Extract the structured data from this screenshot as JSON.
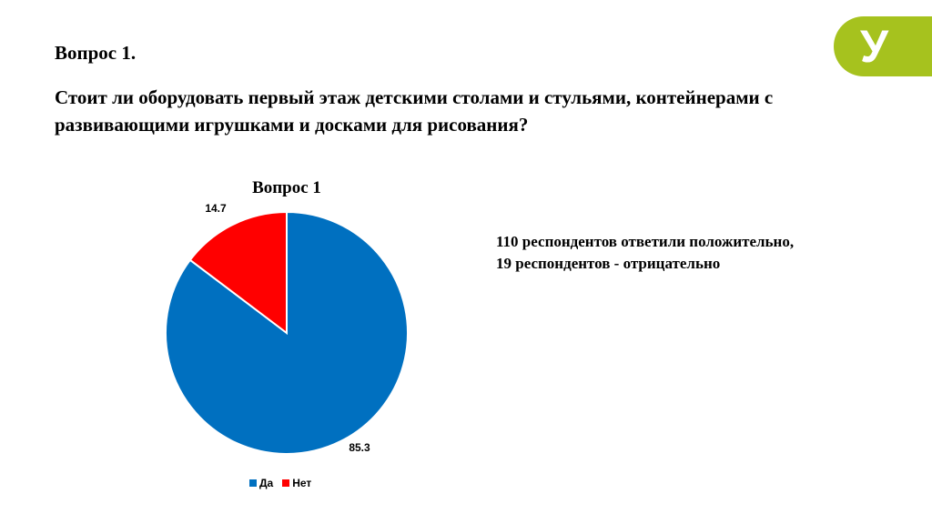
{
  "slide": {
    "question_label": "Вопрос 1.",
    "question_text": "Стоит ли оборудовать первый этаж детскими столами и стульями, контейнерами с развивающими игрушками и досками для рисования?",
    "logo_text": "У",
    "summary_line1": "110 респондентов ответили положительно,",
    "summary_line2": "19 респондентов - отрицательно"
  },
  "colors": {
    "logo_bg": "#a6c21e",
    "yes": "#0070c0",
    "no": "#ff0000"
  },
  "chart_data": {
    "type": "pie",
    "title": "Вопрос 1",
    "categories": [
      "Да",
      "Нет"
    ],
    "values": [
      85.3,
      14.7
    ],
    "data_labels": [
      "85.3",
      "14.7"
    ],
    "colors": [
      "#0070c0",
      "#ff0000"
    ],
    "legend_position": "bottom"
  }
}
